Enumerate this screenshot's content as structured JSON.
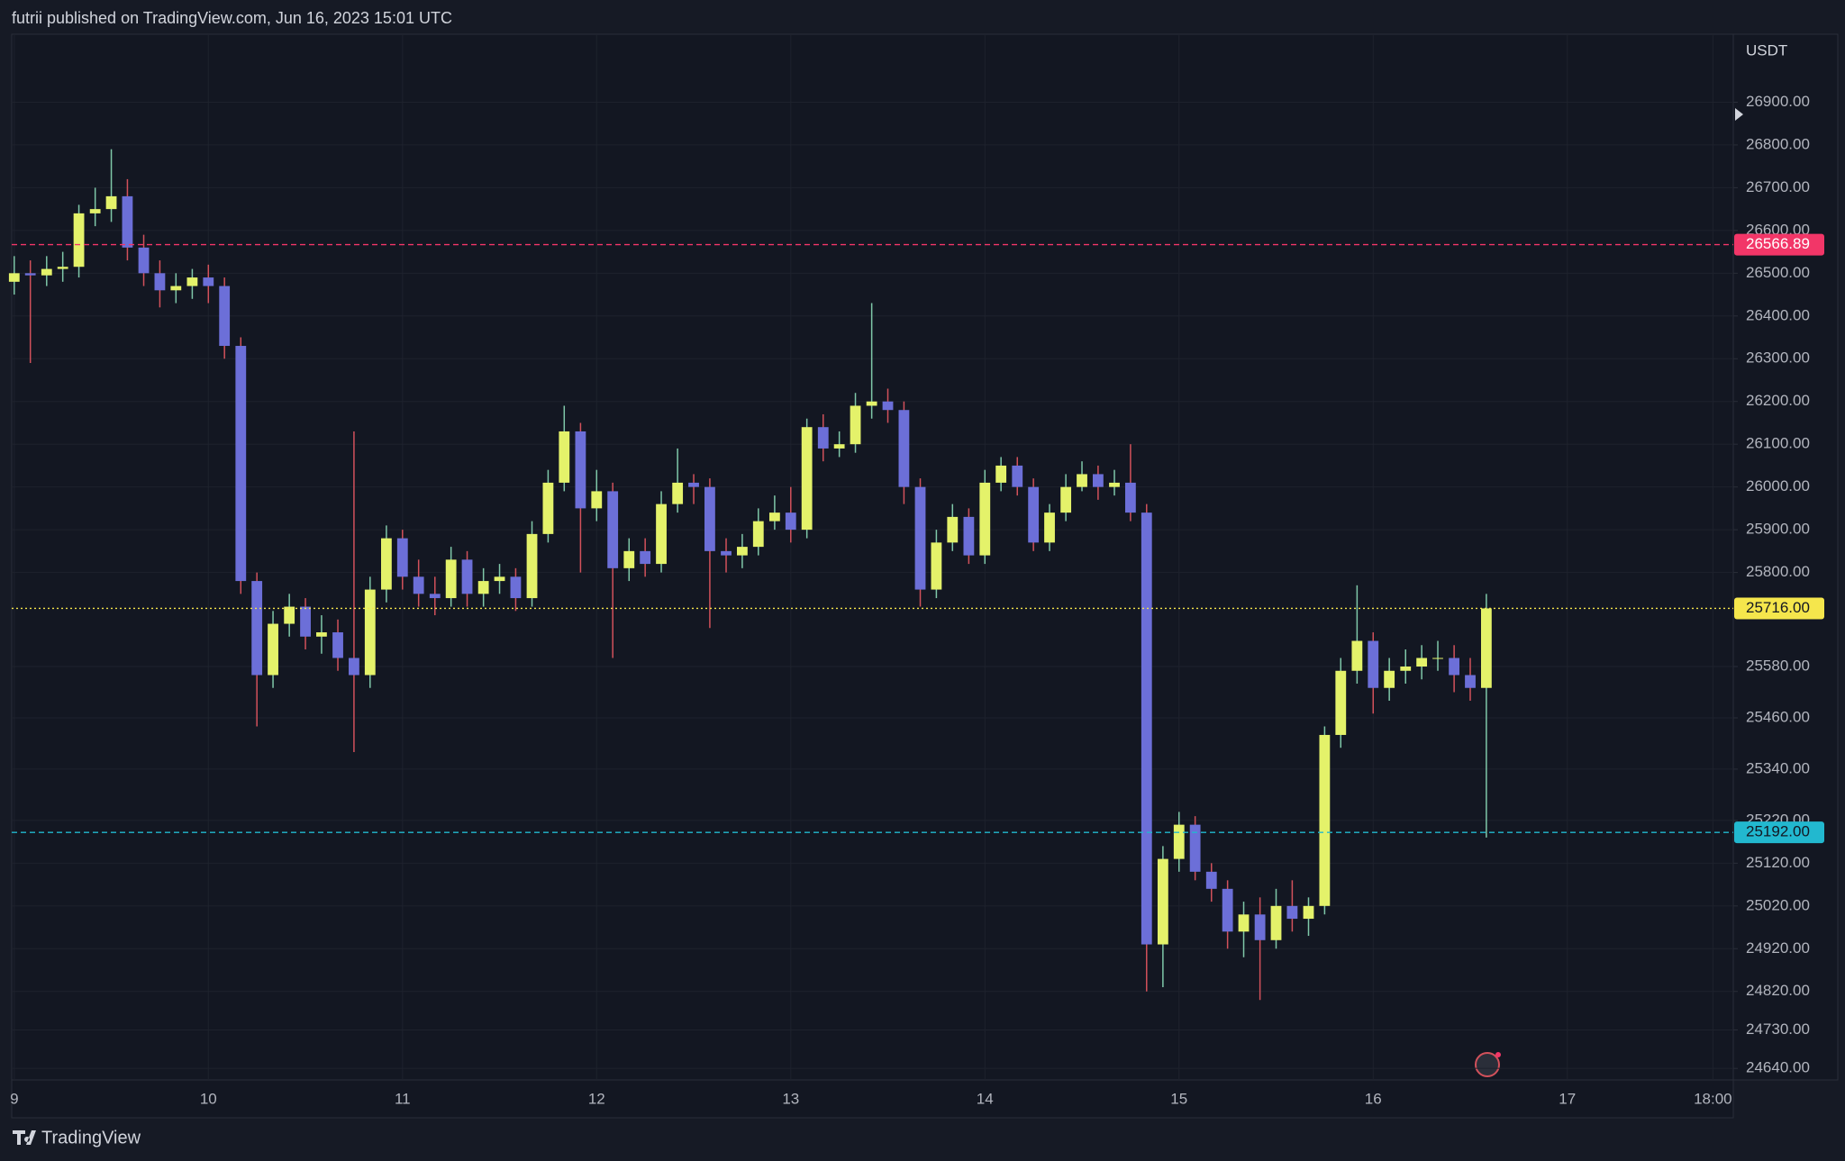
{
  "chart_data": {
    "type": "candlestick",
    "title": "futrii published on TradingView.com, Jun 16, 2023 15:01 UTC",
    "y_label": "USDT",
    "brand": "TradingView",
    "up_color": "#e4f26a",
    "down_color": "#6c6fd8",
    "up_wick_color": "#7fc8a9",
    "down_wick_color": "#d2515b",
    "grid": true,
    "xlim": [
      8.987,
      17.855
    ],
    "xticks": [
      9,
      10,
      11,
      12,
      13,
      14,
      15,
      16,
      17,
      {
        "value": 17.75,
        "label": "18:00"
      }
    ],
    "ylim": [
      24613,
      27059
    ],
    "yticks": [
      {
        "value": 24640,
        "label": "24640.00"
      },
      {
        "value": 24730,
        "label": "24730.00"
      },
      {
        "value": 24820,
        "label": "24820.00"
      },
      {
        "value": 24920,
        "label": "24920.00"
      },
      {
        "value": 25020,
        "label": "25020.00"
      },
      {
        "value": 25120,
        "label": "25120.00"
      },
      {
        "value": 25220,
        "label": "25220.00"
      },
      {
        "value": 25340,
        "label": "25340.00"
      },
      {
        "value": 25460,
        "label": "25460.00"
      },
      {
        "value": 25580,
        "label": "25580.00"
      },
      {
        "value": 25800,
        "label": "25800.00"
      },
      {
        "value": 25900,
        "label": "25900.00"
      },
      {
        "value": 26000,
        "label": "26000.00"
      },
      {
        "value": 26100,
        "label": "26100.00"
      },
      {
        "value": 26200,
        "label": "26200.00"
      },
      {
        "value": 26300,
        "label": "26300.00"
      },
      {
        "value": 26400,
        "label": "26400.00"
      },
      {
        "value": 26500,
        "label": "26500.00"
      },
      {
        "value": 26600,
        "label": "26600.00"
      },
      {
        "value": 26700,
        "label": "26700.00"
      },
      {
        "value": 26800,
        "label": "26800.00"
      },
      {
        "value": 26900,
        "label": "26900.00"
      }
    ],
    "price_lines": [
      {
        "value": 26566.89,
        "label": "26566.89",
        "color": "#f23668",
        "text_color": "#ffffff",
        "style": "dashed"
      },
      {
        "value": 25716,
        "label": "25716.00",
        "color": "#f5e64c",
        "text_color": "#131722",
        "style": "dotted"
      },
      {
        "value": 25192,
        "label": "25192.00",
        "color": "#22b8cf",
        "text_color": "#131722",
        "style": "dashed"
      }
    ],
    "x": [
      9,
      9.083,
      9.167,
      9.25,
      9.333,
      9.417,
      9.5,
      9.583,
      9.667,
      9.75,
      9.833,
      9.917,
      10,
      10.083,
      10.167,
      10.25,
      10.333,
      10.417,
      10.5,
      10.583,
      10.667,
      10.75,
      10.833,
      10.917,
      11,
      11.083,
      11.167,
      11.25,
      11.333,
      11.417,
      11.5,
      11.583,
      11.667,
      11.75,
      11.833,
      11.917,
      12,
      12.083,
      12.167,
      12.25,
      12.333,
      12.417,
      12.5,
      12.583,
      12.667,
      12.75,
      12.833,
      12.917,
      13,
      13.083,
      13.167,
      13.25,
      13.333,
      13.417,
      13.5,
      13.583,
      13.667,
      13.75,
      13.833,
      13.917,
      14,
      14.083,
      14.167,
      14.25,
      14.333,
      14.417,
      14.5,
      14.583,
      14.667,
      14.75,
      14.833,
      14.917,
      15,
      15.083,
      15.167,
      15.25,
      15.333,
      15.417,
      15.5,
      15.583,
      15.667,
      15.75,
      15.833,
      15.917,
      16,
      16.083,
      16.167,
      16.25,
      16.333,
      16.417,
      16.5,
      16.583
    ],
    "open": [
      26480,
      26500,
      26495,
      26510,
      26515,
      26640,
      26650,
      26680,
      26560,
      26500,
      26460,
      26470,
      26490,
      26470,
      26330,
      25780,
      25560,
      25680,
      25720,
      25650,
      25660,
      25600,
      25560,
      25760,
      25880,
      25790,
      25750,
      25740,
      25830,
      25750,
      25780,
      25790,
      25740,
      25890,
      26010,
      26130,
      25950,
      25990,
      25810,
      25850,
      25820,
      25960,
      26010,
      26000,
      25850,
      25840,
      25860,
      25920,
      25940,
      25900,
      26140,
      26090,
      26100,
      26190,
      26200,
      26180,
      26000,
      25760,
      25870,
      25930,
      25840,
      26010,
      26050,
      26000,
      25870,
      25940,
      26000,
      26030,
      26000,
      26010,
      25940,
      24930,
      25130,
      25210,
      25100,
      25060,
      24960,
      25000,
      24940,
      25020,
      24990,
      25020,
      25420,
      25570,
      25640,
      25530,
      25570,
      25580,
      25600,
      25600,
      25560,
      25530
    ],
    "high": [
      26540,
      26530,
      26540,
      26550,
      26660,
      26700,
      26790,
      26720,
      26590,
      26530,
      26500,
      26510,
      26520,
      26490,
      26350,
      25800,
      25710,
      25750,
      25740,
      25700,
      25690,
      26130,
      25790,
      25910,
      25900,
      25830,
      25790,
      25860,
      25850,
      25810,
      25820,
      25810,
      25920,
      26040,
      26190,
      26150,
      26040,
      26010,
      25880,
      25880,
      25990,
      26090,
      26030,
      26020,
      25880,
      25890,
      25950,
      25980,
      26000,
      26160,
      26170,
      26130,
      26220,
      26430,
      26230,
      26200,
      26020,
      25900,
      25960,
      25950,
      26040,
      26070,
      26070,
      26020,
      25960,
      26030,
      26060,
      26050,
      26040,
      26100,
      25960,
      25160,
      25240,
      25230,
      25120,
      25080,
      25030,
      25040,
      25060,
      25080,
      25040,
      25440,
      25600,
      25770,
      25660,
      25600,
      25620,
      25630,
      25640,
      25630,
      25600,
      25750
    ],
    "low": [
      26450,
      26290,
      26470,
      26480,
      26490,
      26610,
      26620,
      26530,
      26470,
      26420,
      26430,
      26440,
      26430,
      26300,
      25750,
      25440,
      25530,
      25650,
      25620,
      25610,
      25570,
      25380,
      25530,
      25730,
      25760,
      25720,
      25700,
      25720,
      25720,
      25720,
      25750,
      25710,
      25720,
      25870,
      25990,
      25800,
      25920,
      25600,
      25780,
      25790,
      25800,
      25940,
      25960,
      25670,
      25800,
      25810,
      25840,
      25900,
      25870,
      25880,
      26060,
      26070,
      26080,
      26160,
      26150,
      25960,
      25720,
      25740,
      25850,
      25820,
      25820,
      25990,
      25980,
      25850,
      25850,
      25920,
      25990,
      25970,
      25980,
      25920,
      24820,
      24830,
      25100,
      25080,
      25030,
      24920,
      24900,
      24800,
      24920,
      24960,
      24950,
      25000,
      25390,
      25540,
      25470,
      25500,
      25540,
      25550,
      25570,
      25520,
      25500,
      25180
    ],
    "close": [
      26500,
      26495,
      26510,
      26515,
      26640,
      26650,
      26680,
      26560,
      26500,
      26460,
      26470,
      26490,
      26470,
      26330,
      25780,
      25560,
      25680,
      25720,
      25650,
      25660,
      25600,
      25560,
      25760,
      25880,
      25790,
      25750,
      25740,
      25830,
      25750,
      25780,
      25790,
      25740,
      25890,
      26010,
      26130,
      25950,
      25990,
      25810,
      25850,
      25820,
      25960,
      26010,
      26000,
      25850,
      25840,
      25860,
      25920,
      25940,
      25900,
      26140,
      26090,
      26100,
      26190,
      26200,
      26180,
      26000,
      25760,
      25870,
      25930,
      25840,
      26010,
      26050,
      26000,
      25870,
      25940,
      26000,
      26030,
      26000,
      26010,
      25940,
      24930,
      25130,
      25210,
      25100,
      25060,
      24960,
      25000,
      24940,
      25020,
      24990,
      25020,
      25420,
      25570,
      25640,
      25530,
      25570,
      25580,
      25600,
      25600,
      25560,
      25530,
      25716
    ]
  }
}
